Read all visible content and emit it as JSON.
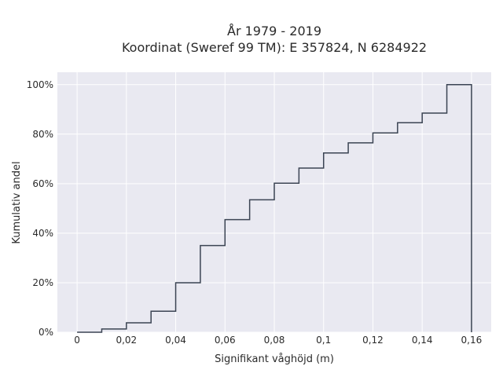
{
  "chart_data": {
    "type": "line",
    "step": "cumulative-histogram",
    "title": [
      "År 1979 - 2019",
      "Koordinat (Sweref 99 TM): E 357824, N 6284922"
    ],
    "xlabel": "Signifikant våghöjd (m)",
    "ylabel": "Kumulativ andel",
    "xlim": [
      -0.008,
      0.168
    ],
    "ylim": [
      0,
      1.05
    ],
    "x_ticks": [
      0,
      0.02,
      0.04,
      0.06,
      0.08,
      0.1,
      0.12,
      0.14,
      0.16
    ],
    "x_tick_labels": [
      "0",
      "0,02",
      "0,04",
      "0,06",
      "0,08",
      "0,1",
      "0,12",
      "0,14",
      "0,16"
    ],
    "y_ticks": [
      0,
      0.2,
      0.4,
      0.6,
      0.8,
      1.0
    ],
    "y_tick_labels": [
      "0%",
      "20%",
      "40%",
      "60%",
      "80%",
      "100%"
    ],
    "grid": true,
    "background": "#e9e9f1",
    "line_color": "#3b4453",
    "bin_edges": [
      0,
      0.01,
      0.02,
      0.03,
      0.04,
      0.05,
      0.06,
      0.07,
      0.08,
      0.09,
      0.1,
      0.11,
      0.12,
      0.13,
      0.14,
      0.15,
      0.16
    ],
    "cumulative_values": [
      0.0,
      0.013,
      0.038,
      0.085,
      0.2,
      0.35,
      0.455,
      0.535,
      0.602,
      0.663,
      0.724,
      0.765,
      0.805,
      0.846,
      0.885,
      1.0
    ]
  }
}
